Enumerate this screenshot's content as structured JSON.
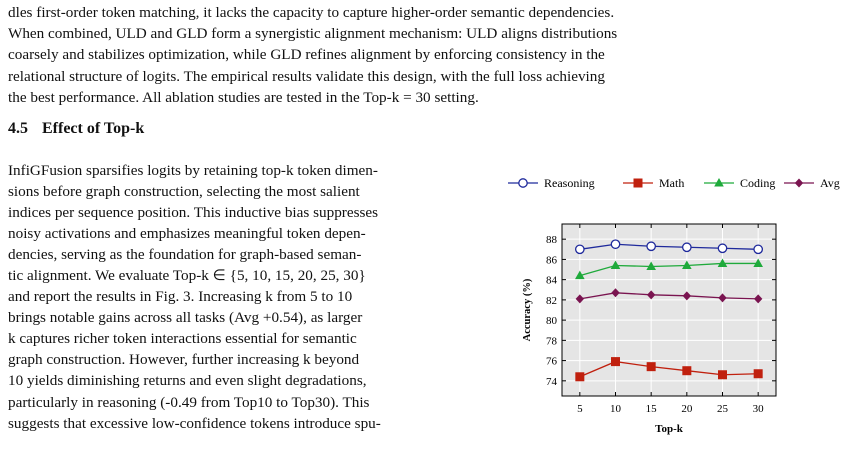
{
  "top_paragraph": [
    "dles first-order token matching, it lacks the capacity to capture higher-order semantic dependencies.",
    "When combined, ULD and GLD form a synergistic alignment mechanism: ULD aligns distributions",
    "coarsely and stabilizes optimization, while GLD refines alignment by enforcing consistency in the",
    "relational structure of logits. The empirical results validate this design, with the full loss achieving",
    "the best performance. All ablation studies are tested in the Top-k = 30 setting."
  ],
  "section": {
    "number": "4.5",
    "title": "Effect of Top-k"
  },
  "body_lines": [
    "InfiGFusion sparsifies logits by retaining top-k token dimen-",
    "sions before graph construction, selecting the most salient",
    "indices per sequence position. This inductive bias suppresses",
    "noisy activations and emphasizes meaningful token depen-",
    "dencies, serving as the foundation for graph-based seman-",
    "tic alignment. We evaluate Top-k ∈ {5, 10, 15, 20, 25, 30}",
    "and report the results in Fig. 3. Increasing k from 5 to 10",
    "brings notable gains across all tasks (Avg +0.54), as larger",
    "k captures richer token interactions essential for semantic",
    "graph construction. However, further increasing k beyond",
    "10 yields diminishing returns and even slight degradations,",
    "particularly in reasoning (-0.49 from Top10 to Top30). This",
    "suggests that excessive low-confidence tokens introduce spu-"
  ],
  "chart_data": {
    "type": "line",
    "x": [
      5,
      10,
      15,
      20,
      25,
      30
    ],
    "xlabel": "Top-k",
    "ylabel": "Accuracy (%)",
    "ylim": [
      72.5,
      89.5
    ],
    "yticks": [
      74,
      76,
      78,
      80,
      82,
      84,
      86,
      88
    ],
    "grid": true,
    "legend_position": "top",
    "series": [
      {
        "name": "Reasoning",
        "color": "#1f2a9c",
        "marker": "circle-open",
        "values": [
          87.0,
          87.5,
          87.3,
          87.2,
          87.1,
          87.0
        ]
      },
      {
        "name": "Math",
        "color": "#c0200e",
        "marker": "square",
        "values": [
          74.4,
          75.9,
          75.4,
          75.0,
          74.6,
          74.7
        ]
      },
      {
        "name": "Coding",
        "color": "#1faa3b",
        "marker": "triangle",
        "values": [
          84.4,
          85.4,
          85.3,
          85.4,
          85.6,
          85.6
        ]
      },
      {
        "name": "Avg",
        "color": "#7a1450",
        "marker": "diamond",
        "values": [
          82.1,
          82.7,
          82.5,
          82.4,
          82.2,
          82.1
        ]
      }
    ]
  }
}
